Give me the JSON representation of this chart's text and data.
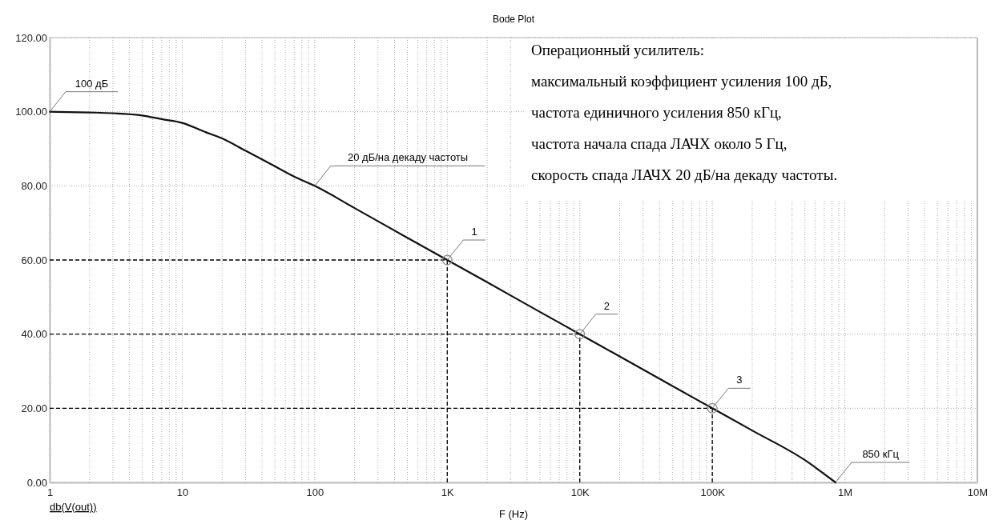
{
  "chart_data": {
    "type": "line",
    "title": "Bode Plot",
    "xlabel": "F (Hz)",
    "log": "x",
    "grid": true,
    "xlim": [
      1,
      10000000
    ],
    "ylim": [
      0,
      120
    ],
    "xticks": [
      1,
      10,
      100,
      {
        "value": 1000,
        "label": "1K"
      },
      {
        "value": 10000,
        "label": "10K"
      },
      {
        "value": 100000,
        "label": "100K"
      },
      {
        "value": 1000000,
        "label": "1M"
      },
      {
        "value": 10000000,
        "label": "10M"
      }
    ],
    "yticks": [
      {
        "value": 0,
        "label": "0.00"
      },
      {
        "value": 20,
        "label": "20.00"
      },
      {
        "value": 40,
        "label": "40.00"
      },
      {
        "value": 60,
        "label": "60.00"
      },
      {
        "value": 80,
        "label": "80.00"
      },
      {
        "value": 100,
        "label": "100.00"
      },
      {
        "value": 120,
        "label": "120.00"
      }
    ],
    "series": [
      {
        "color": "#111111",
        "x": [
          1,
          2,
          3,
          5,
          7,
          10,
          15,
          20,
          30,
          50,
          70,
          100,
          200,
          500,
          1000,
          2000,
          5000,
          10000,
          20000,
          50000,
          100000,
          200000,
          500000,
          850000
        ],
        "values": [
          100,
          99.8,
          99.6,
          99,
          98,
          97,
          94.5,
          92.8,
          89.5,
          85.3,
          82.5,
          80,
          74,
          66,
          60,
          54,
          46,
          40,
          34,
          26,
          20,
          14,
          6,
          0
        ]
      },
      {
        "type": "scatter",
        "marker": "circle",
        "color": "#888888",
        "x": [
          1000,
          10000,
          100000
        ],
        "values": [
          60,
          40,
          20
        ],
        "errors": [
          [
            0,
            60
          ],
          [
            0,
            40
          ],
          [
            0,
            20
          ]
        ],
        "xerrors": [
          [
            1,
            1000
          ],
          [
            1,
            10000
          ],
          [
            1,
            100000
          ]
        ]
      }
    ],
    "annotations": [
      {
        "text": "100 дБ",
        "x": 1,
        "y": 100
      },
      {
        "text": "20 дБ/на декаду частоты",
        "x": 100,
        "y": 80
      },
      {
        "text": "1",
        "x": 1000,
        "y": 60
      },
      {
        "text": "2",
        "x": 10000,
        "y": 40
      },
      {
        "text": "3",
        "x": 100000,
        "y": 20
      },
      {
        "text": "850 кГц",
        "x": 850000,
        "y": 0
      },
      "db(V(out))",
      "Операционный усилитель:",
      "максимальный коэффициент усиления 100 дБ,",
      "частота единичного усиления 850 кГц,",
      "частота начала спада ЛАЧХ около 5 Гц,",
      "скорость спада ЛАЧХ 20 дБ/на декаду частоты."
    ]
  }
}
